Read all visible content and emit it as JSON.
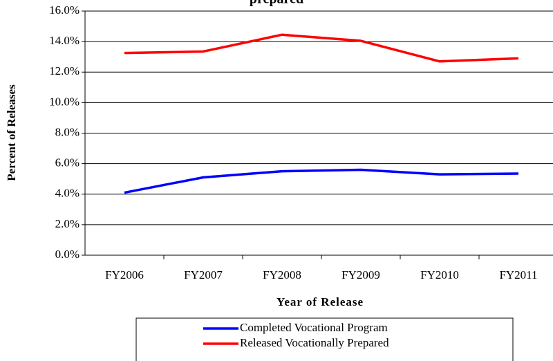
{
  "chart_data": {
    "type": "line",
    "title": "prepared",
    "x_label": "Year of Release",
    "y_label": "Percent of Releases",
    "categories": [
      "FY2006",
      "FY2007",
      "FY2008",
      "FY2009",
      "FY2010",
      "FY2011"
    ],
    "series": [
      {
        "name": "Completed Vocational Program",
        "color": "#0000ff",
        "values": [
          4.1,
          5.1,
          5.5,
          5.6,
          5.3,
          5.35
        ]
      },
      {
        "name": "Released Vocationally Prepared",
        "color": "#ff0000",
        "values": [
          13.25,
          13.35,
          14.45,
          14.05,
          12.7,
          12.9
        ]
      }
    ],
    "ylim": [
      0,
      16
    ],
    "yticks": [
      {
        "value": 0,
        "label": "0.0%"
      },
      {
        "value": 2,
        "label": "2.0%"
      },
      {
        "value": 4,
        "label": "4.0%"
      },
      {
        "value": 6,
        "label": "6.0%"
      },
      {
        "value": 8,
        "label": "8.0%"
      },
      {
        "value": 10,
        "label": "10.0%"
      },
      {
        "value": 12,
        "label": "12.0%"
      },
      {
        "value": 14,
        "label": "14.0%"
      },
      {
        "value": 16,
        "label": "16.0%"
      }
    ],
    "grid": true,
    "legend": "bottom"
  }
}
